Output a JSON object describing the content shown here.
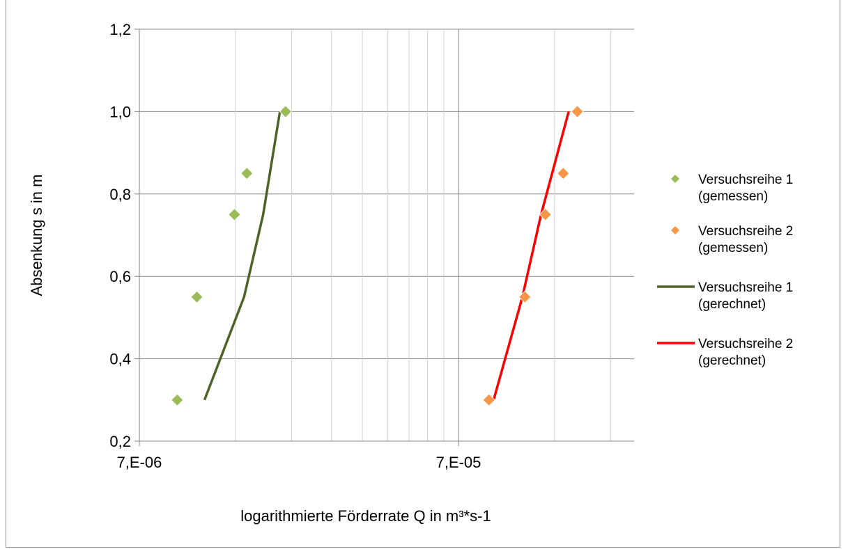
{
  "chart_data": {
    "type": "scatter",
    "title": "",
    "xlabel": "logarithmierte Förderrate Q in m³*s-1",
    "ylabel": "Absenkung s in m",
    "x_scale": "log",
    "xlim": [
      7e-06,
      7e-05
    ],
    "x_tick_labels": [
      "7,E-06",
      "7,E-05"
    ],
    "ylim": [
      0.2,
      1.2
    ],
    "y_ticks": [
      0.2,
      0.4,
      0.6,
      0.8,
      1.0,
      1.2
    ],
    "y_tick_labels": [
      "0,2",
      "0,4",
      "0,6",
      "0,8",
      "1,0",
      "1,2"
    ],
    "grid": true,
    "legend_position": "right",
    "series": [
      {
        "name": "Versuchsreihe 1 (gemessen)",
        "legend_lines": [
          "Versuchsreihe 1",
          "(gemessen)"
        ],
        "kind": "scatter",
        "marker": "diamond",
        "color": "#9bbb59",
        "x": [
          9.2e-06,
          1.06e-05,
          1.39e-05,
          1.52e-05,
          2.01e-05
        ],
        "y": [
          0.3,
          0.55,
          0.75,
          0.85,
          1.0
        ]
      },
      {
        "name": "Versuchsreihe 2 (gemessen)",
        "legend_lines": [
          "Versuchsreihe 2",
          "(gemessen)"
        ],
        "kind": "scatter",
        "marker": "diamond",
        "color": "#f79646",
        "x": [
          8.72e-05,
          0.000113,
          0.000131,
          0.000149,
          0.000165
        ],
        "y": [
          0.3,
          0.55,
          0.75,
          0.85,
          1.0
        ]
      },
      {
        "name": "Versuchsreihe 1 (gerechnet)",
        "legend_lines": [
          "Versuchsreihe 1",
          "(gerechnet)"
        ],
        "kind": "line",
        "color": "#4f6228",
        "x": [
          1.12e-05,
          1.49e-05,
          1.71e-05,
          1.93e-05
        ],
        "y": [
          0.3,
          0.55,
          0.75,
          1.0
        ]
      },
      {
        "name": "Versuchsreihe 2 (gerechnet)",
        "legend_lines": [
          "Versuchsreihe 2",
          "(gerechnet)"
        ],
        "kind": "line",
        "color": "#ff0000",
        "x": [
          9.02e-05,
          0.000111,
          0.000127,
          0.000155
        ],
        "y": [
          0.3,
          0.55,
          0.75,
          1.0
        ]
      }
    ]
  }
}
